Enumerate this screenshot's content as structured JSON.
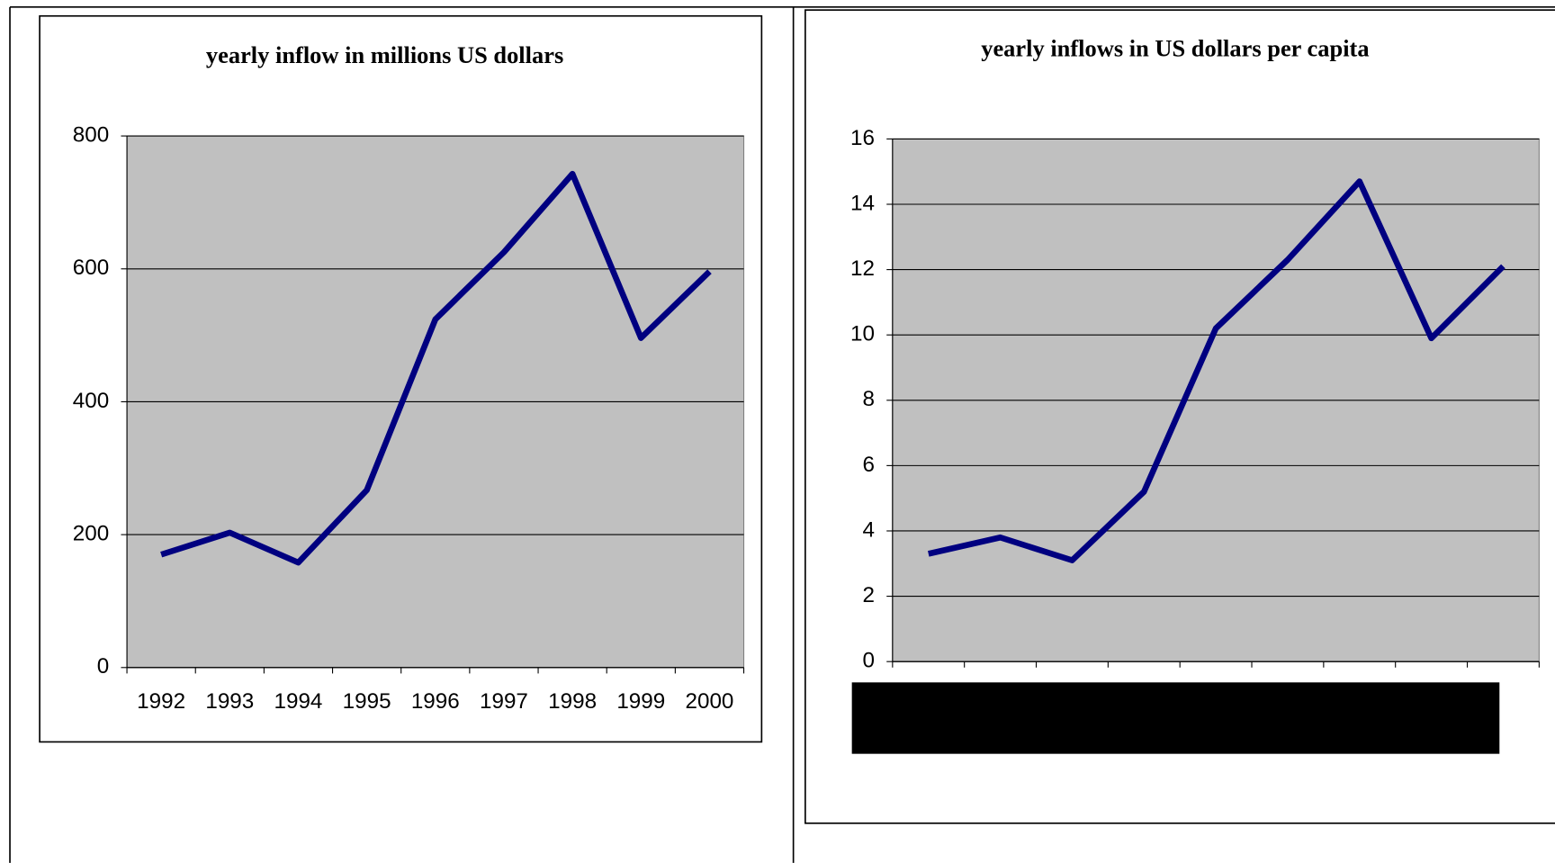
{
  "chart_data": [
    {
      "type": "line",
      "title": "yearly inflow in millions US dollars",
      "categories": [
        "1992",
        "1993",
        "1994",
        "1995",
        "1996",
        "1997",
        "1998",
        "1999",
        "2000"
      ],
      "series": [
        {
          "color": "#000080",
          "values": [
            170,
            203,
            158,
            267,
            524,
            625,
            743,
            496,
            596
          ]
        }
      ],
      "ylim": [
        0,
        800
      ],
      "yticks": [
        0,
        200,
        400,
        600,
        800
      ],
      "grid": true
    },
    {
      "type": "line",
      "title": "yearly inflows in US dollars per capita",
      "categories": [
        null,
        null,
        null,
        null,
        null,
        null,
        null,
        null,
        null
      ],
      "series": [
        {
          "color": "#000080",
          "values": [
            3.3,
            3.8,
            3.1,
            5.2,
            10.2,
            12.3,
            14.7,
            9.9,
            12.1
          ]
        }
      ],
      "ylim": [
        0,
        16
      ],
      "yticks": [
        0,
        2,
        4,
        6,
        8,
        10,
        12,
        14,
        16
      ],
      "grid": true
    }
  ]
}
